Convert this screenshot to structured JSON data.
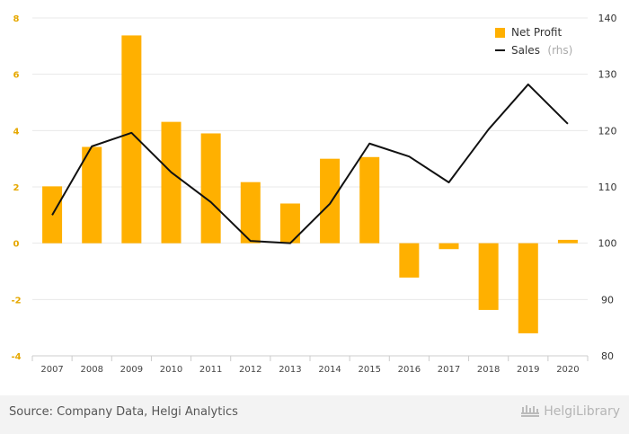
{
  "chart_data": {
    "type": "bar+line",
    "categories": [
      "2007",
      "2008",
      "2009",
      "2010",
      "2011",
      "2012",
      "2013",
      "2014",
      "2015",
      "2016",
      "2017",
      "2018",
      "2019",
      "2020"
    ],
    "series": [
      {
        "name": "Net Profit",
        "type": "bar",
        "axis": "left",
        "color": "#FFB000",
        "values": [
          2.02,
          3.42,
          7.38,
          4.31,
          3.9,
          2.17,
          1.41,
          3.0,
          3.06,
          -1.22,
          -0.21,
          -2.37,
          -3.2,
          0.12
        ]
      },
      {
        "name": "Sales",
        "type": "line",
        "axis": "right",
        "color": "#111111",
        "values": [
          105.0,
          117.2,
          119.6,
          112.6,
          107.3,
          100.4,
          100.0,
          107.0,
          117.7,
          115.4,
          110.8,
          120.2,
          128.2,
          121.2
        ]
      }
    ],
    "legend": {
      "bar_label": "Net Profit",
      "line_label": "Sales",
      "line_suffix": "(rhs)",
      "position": "top-right"
    },
    "y_left": {
      "min": -4,
      "max": 8,
      "ticks": [
        "-4",
        "-2",
        "0",
        "2",
        "4",
        "6",
        "8"
      ]
    },
    "y_right": {
      "min": 80,
      "max": 140,
      "ticks": [
        "80",
        "90",
        "100",
        "110",
        "120",
        "130",
        "140"
      ]
    },
    "grid": true
  },
  "footer": {
    "source": "Source: Company Data, Helgi Analytics",
    "brand": "HelgiLibrary"
  }
}
